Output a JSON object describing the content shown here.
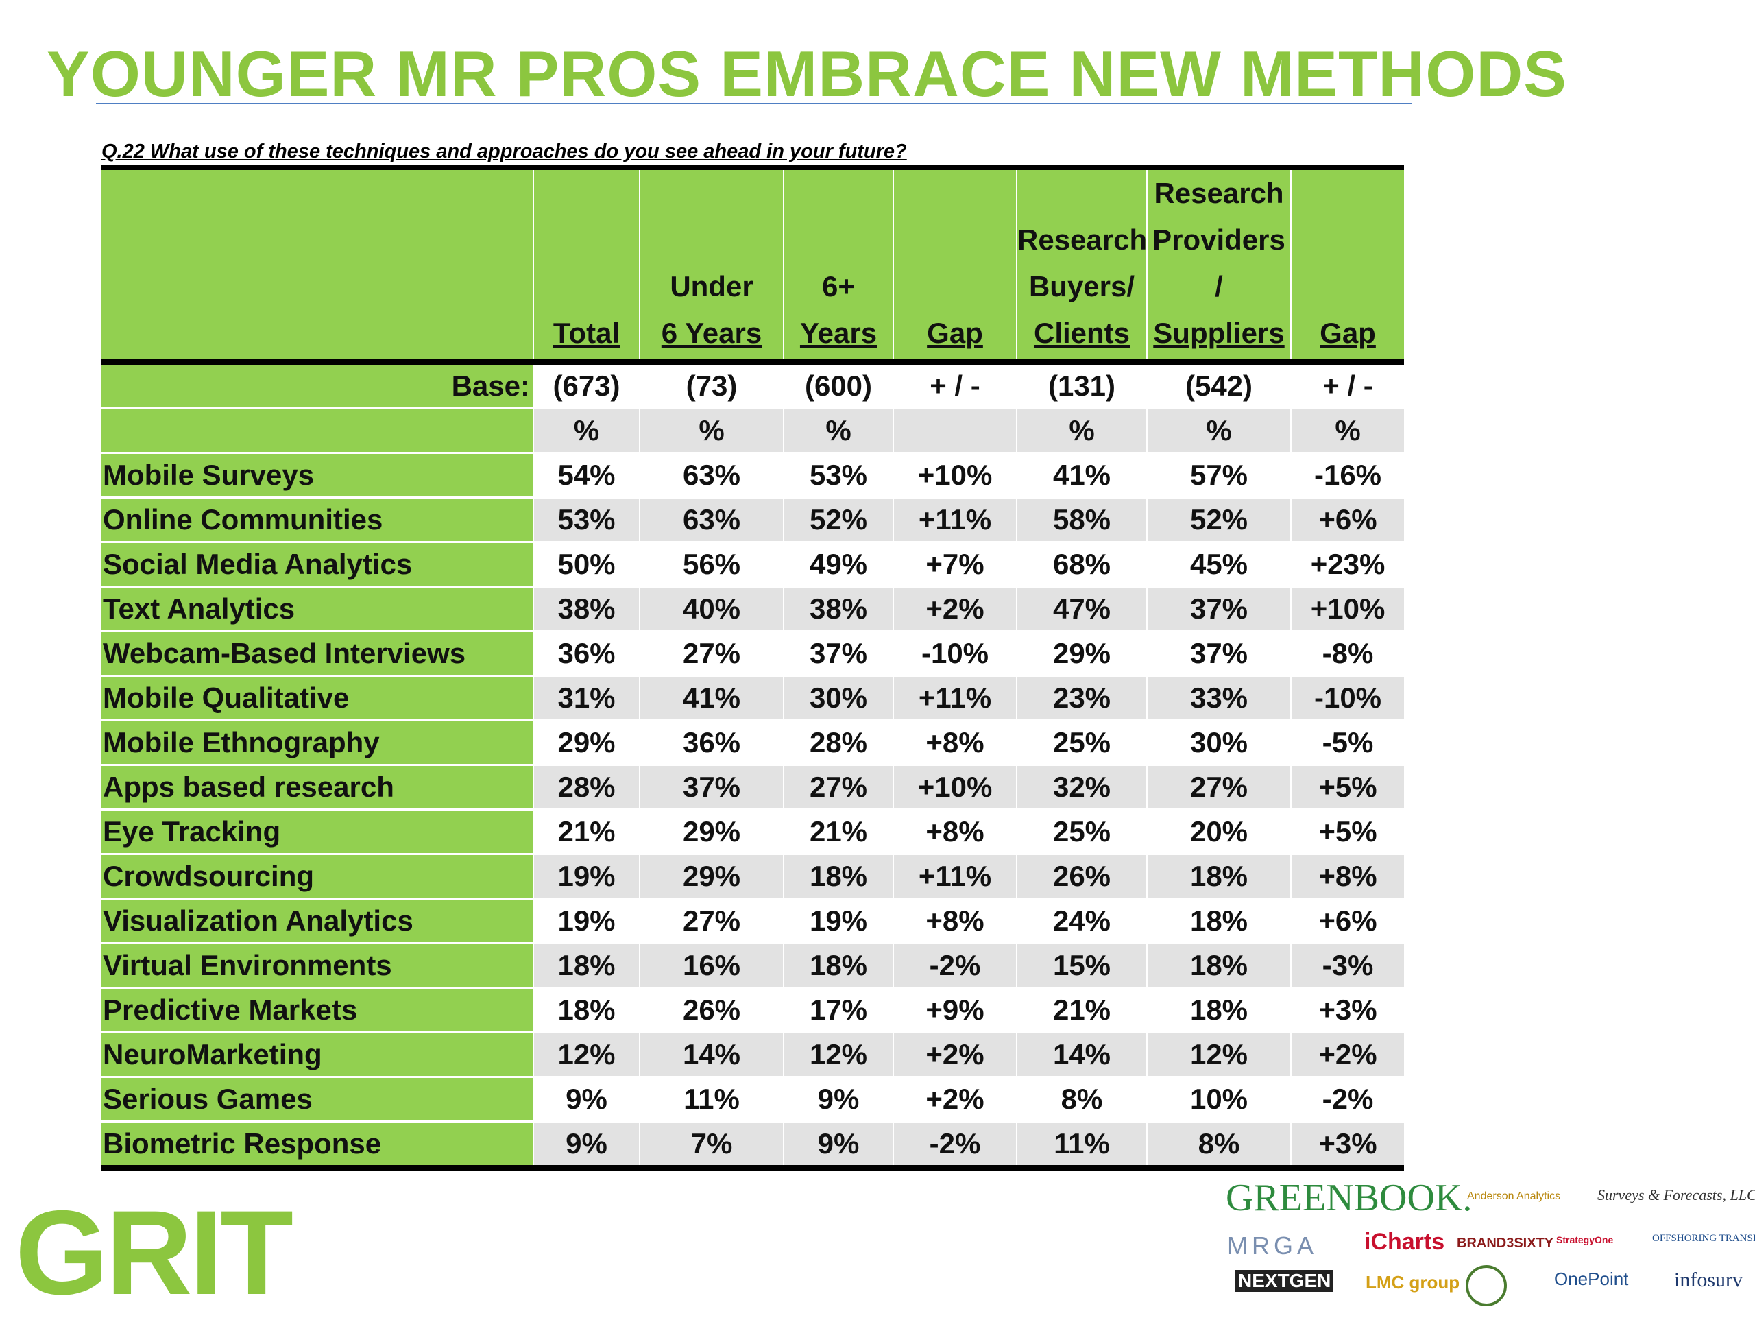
{
  "title": "YOUNGER MR PROS EMBRACE NEW METHODS",
  "question": "Q.22 What use of these techniques and approaches do you see ahead in your future?",
  "logo": "GRIT",
  "sponsors": {
    "greenbook": "GREENBOOK.",
    "anderson": "Anderson Analytics",
    "surveys": "Surveys & Forecasts, LLC",
    "mrga": "MRGA",
    "icharts": "iCharts",
    "brand3": "BRAND3SIXTY",
    "strategyone": "StrategyOne",
    "offshoring": "OFFSHORING TRANSPARENCY",
    "nextgen": "NEXTGEN",
    "lmc": "LMC group",
    "onepoint": "OnePoint",
    "infosurv": "infosurv"
  },
  "chart_data": {
    "type": "table",
    "title": "YOUNGER MR PROS EMBRACE NEW METHODS",
    "subtitle": "Q.22 What use of these techniques and approaches do you see ahead in your future?",
    "columns": [
      {
        "lines": [
          "",
          "",
          "",
          "Total"
        ]
      },
      {
        "lines": [
          "",
          "",
          "Under",
          "6 Years"
        ]
      },
      {
        "lines": [
          "",
          "",
          "6+",
          "Years"
        ]
      },
      {
        "lines": [
          "",
          "",
          "",
          "Gap"
        ]
      },
      {
        "lines": [
          "",
          "Research",
          "Buyers/",
          "Clients"
        ]
      },
      {
        "lines": [
          "Research",
          "Providers",
          "/",
          "Suppliers"
        ]
      },
      {
        "lines": [
          "",
          "",
          "",
          "Gap"
        ]
      }
    ],
    "base_label": "Base:",
    "base": [
      "(673)",
      "(73)",
      "(600)",
      "+ / -",
      "(131)",
      "(542)",
      "+ / -"
    ],
    "units": [
      "%",
      "%",
      "%",
      "",
      "%",
      "%",
      "%"
    ],
    "rows": [
      {
        "label": "Mobile Surveys",
        "values": [
          "54%",
          "63%",
          "53%",
          "+10%",
          "41%",
          "57%",
          "-16%"
        ]
      },
      {
        "label": "Online Communities",
        "values": [
          "53%",
          "63%",
          "52%",
          "+11%",
          "58%",
          "52%",
          "+6%"
        ]
      },
      {
        "label": "Social Media Analytics",
        "values": [
          "50%",
          "56%",
          "49%",
          "+7%",
          "68%",
          "45%",
          "+23%"
        ]
      },
      {
        "label": "Text Analytics",
        "values": [
          "38%",
          "40%",
          "38%",
          "+2%",
          "47%",
          "37%",
          "+10%"
        ]
      },
      {
        "label": "Webcam-Based Interviews",
        "values": [
          "36%",
          "27%",
          "37%",
          "-10%",
          "29%",
          "37%",
          "-8%"
        ]
      },
      {
        "label": "Mobile Qualitative",
        "values": [
          "31%",
          "41%",
          "30%",
          "+11%",
          "23%",
          "33%",
          "-10%"
        ]
      },
      {
        "label": "Mobile Ethnography",
        "values": [
          "29%",
          "36%",
          "28%",
          "+8%",
          "25%",
          "30%",
          "-5%"
        ]
      },
      {
        "label": "Apps based research",
        "values": [
          "28%",
          "37%",
          "27%",
          "+10%",
          "32%",
          "27%",
          "+5%"
        ]
      },
      {
        "label": "Eye Tracking",
        "values": [
          "21%",
          "29%",
          "21%",
          "+8%",
          "25%",
          "20%",
          "+5%"
        ]
      },
      {
        "label": "Crowdsourcing",
        "values": [
          "19%",
          "29%",
          "18%",
          "+11%",
          "26%",
          "18%",
          "+8%"
        ]
      },
      {
        "label": "Visualization Analytics",
        "values": [
          "19%",
          "27%",
          "19%",
          "+8%",
          "24%",
          "18%",
          "+6%"
        ]
      },
      {
        "label": "Virtual Environments",
        "values": [
          "18%",
          "16%",
          "18%",
          "-2%",
          "15%",
          "18%",
          "-3%"
        ]
      },
      {
        "label": "Predictive Markets",
        "values": [
          "18%",
          "26%",
          "17%",
          "+9%",
          "21%",
          "18%",
          "+3%"
        ]
      },
      {
        "label": "NeuroMarketing",
        "values": [
          "12%",
          "14%",
          "12%",
          "+2%",
          "14%",
          "12%",
          "+2%"
        ]
      },
      {
        "label": "Serious Games",
        "values": [
          "9%",
          "11%",
          "9%",
          "+2%",
          "8%",
          "10%",
          "-2%"
        ]
      },
      {
        "label": "Biometric Response",
        "values": [
          "9%",
          "7%",
          "9%",
          "-2%",
          "11%",
          "8%",
          "+3%"
        ]
      }
    ]
  }
}
